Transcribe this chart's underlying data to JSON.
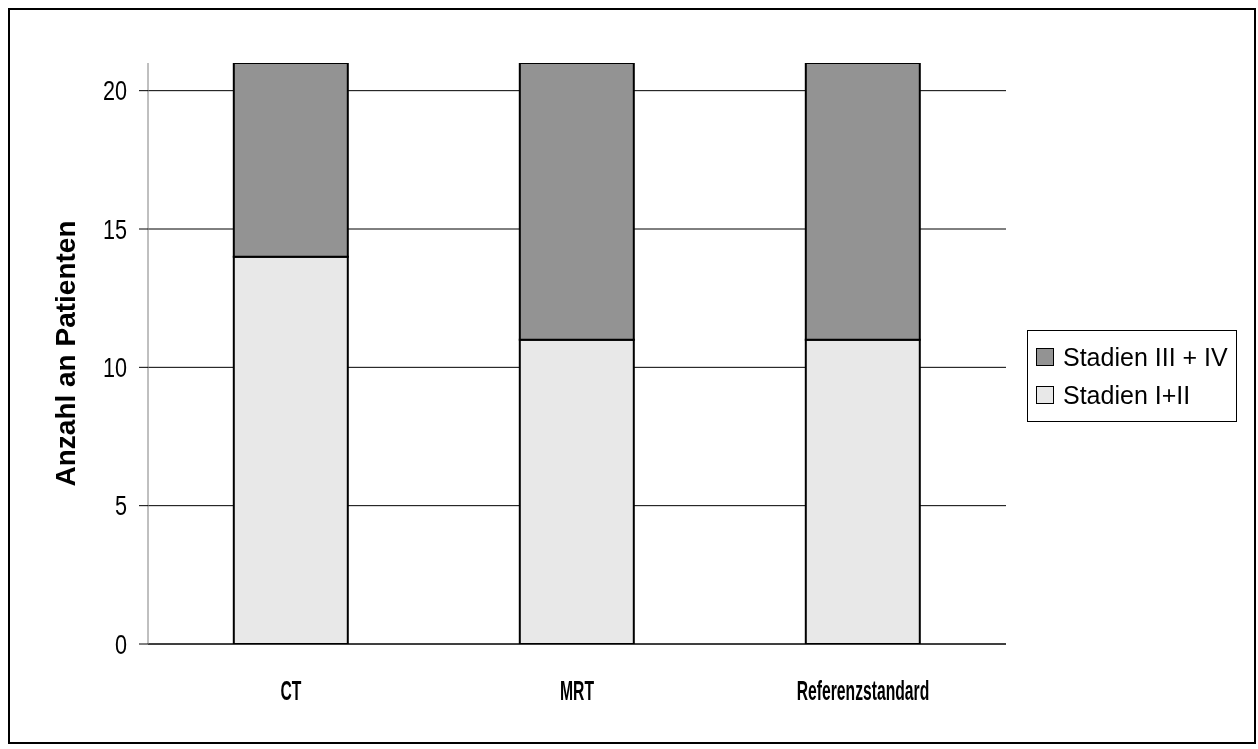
{
  "chart_data": {
    "type": "bar",
    "ylabel": "Anzahl an Patienten",
    "categories": [
      "CT",
      "MRT",
      "Referenzstandard"
    ],
    "series": [
      {
        "name": "Stadien I+II",
        "color": "#e8e8e8",
        "values": [
          14,
          11,
          11
        ]
      },
      {
        "name": "Stadien III + IV",
        "color": "#939393",
        "values": [
          7,
          10,
          10
        ]
      }
    ],
    "stacked": true,
    "ylim": [
      0,
      21
    ],
    "yticks": [
      0,
      5,
      10,
      15,
      20
    ],
    "grid": "y",
    "legend": "right"
  }
}
